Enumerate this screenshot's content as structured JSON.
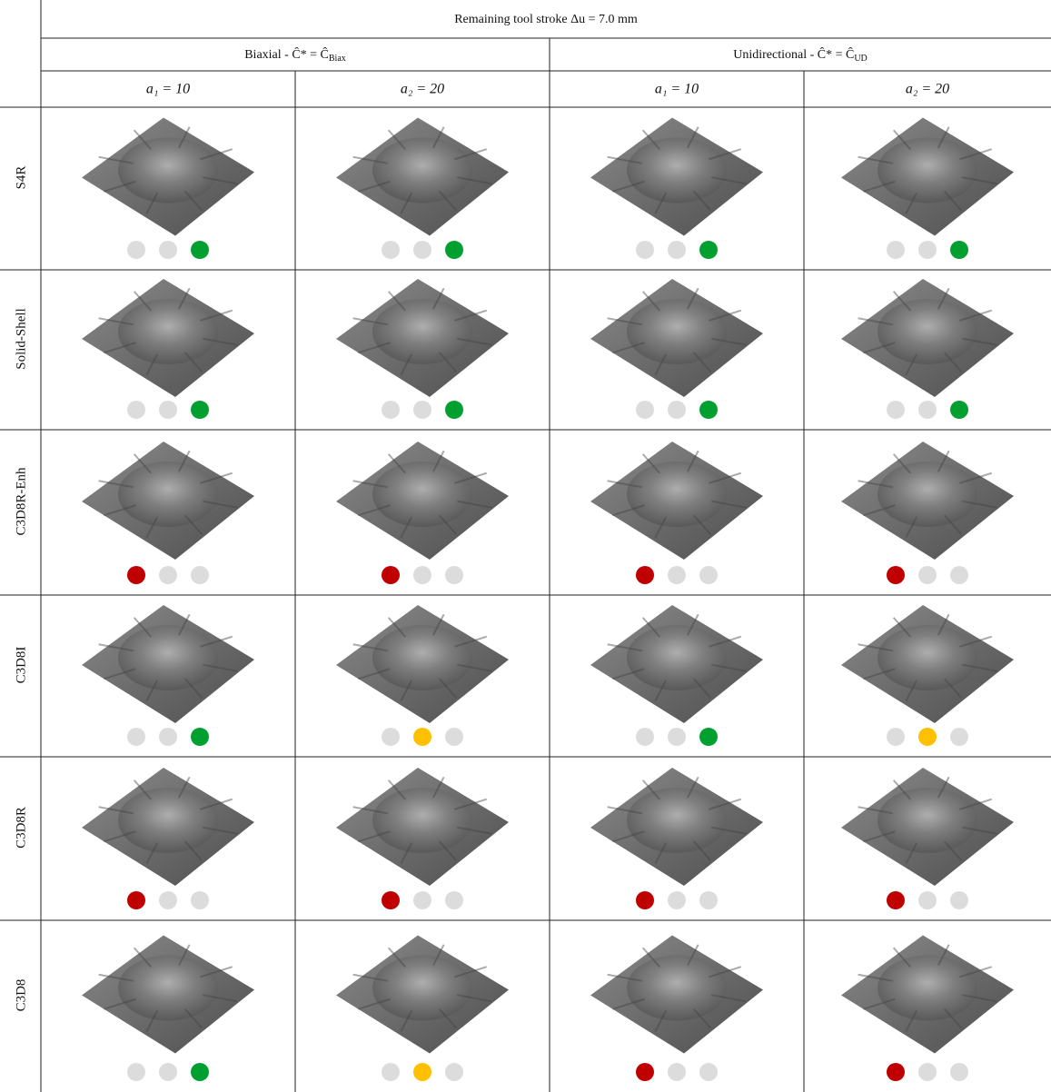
{
  "header": {
    "title": "Remaining tool stroke Δu = 7.0 mm",
    "groups": [
      {
        "label": "Biaxial - Ĉ* = Ĉ",
        "subscript": "Biax"
      },
      {
        "label": "Unidirectional - Ĉ* = Ĉ",
        "subscript": "UD"
      }
    ],
    "columns": [
      "a₁ = 10",
      "a₂ = 20",
      "a₁ = 10",
      "a₂ = 20"
    ]
  },
  "rows": [
    {
      "name": "S4R",
      "indicators": [
        "green",
        "green",
        "green",
        "green"
      ]
    },
    {
      "name": "Solid-Shell",
      "indicators": [
        "green",
        "green",
        "green",
        "green"
      ]
    },
    {
      "name": "C3D8R-Enh",
      "indicators": [
        "red",
        "red",
        "red",
        "red"
      ]
    },
    {
      "name": "C3D8I",
      "indicators": [
        "green",
        "yellow",
        "green",
        "yellow"
      ]
    },
    {
      "name": "C3D8R",
      "indicators": [
        "red",
        "red",
        "red",
        "red"
      ]
    },
    {
      "name": "C3D8",
      "indicators": [
        "green",
        "yellow",
        "red",
        "red"
      ]
    }
  ]
}
